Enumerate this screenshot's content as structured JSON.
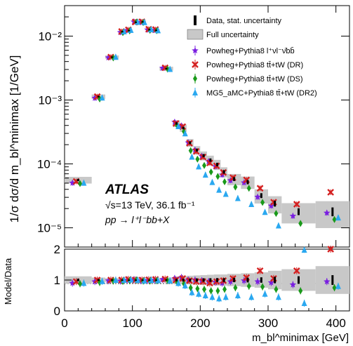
{
  "chart_data": {
    "type": "scatter",
    "experiment": "ATLAS",
    "info": {
      "energy": "√s=13 TeV, 36.1 fb⁻¹",
      "process": "pp → l⁺l⁻bb+X"
    },
    "top": {
      "ylabel": "1/σ dσ/d m_bl^minimax [1/GeV]",
      "yscale": "log",
      "ylim": [
        5e-06,
        0.03
      ],
      "yticks": [
        "10⁻⁵",
        "10⁻⁴",
        "10⁻³",
        "10⁻²"
      ],
      "ytick_values": [
        1e-05,
        0.0001,
        0.001,
        0.01
      ]
    },
    "bottom": {
      "ylabel": "Model/Data",
      "ylim": [
        0,
        2
      ],
      "yticks": [
        "0",
        "1",
        "2"
      ],
      "ytick_values": [
        0,
        1,
        2
      ]
    },
    "xlabel": "m_bl^minimax [GeV]",
    "xlim": [
      0,
      420
    ],
    "xticks": [
      "0",
      "100",
      "200",
      "300",
      "400"
    ],
    "xtick_values": [
      0,
      100,
      200,
      300,
      400
    ],
    "bins": [
      [
        0,
        40
      ],
      [
        40,
        60
      ],
      [
        60,
        80
      ],
      [
        80,
        90
      ],
      [
        90,
        100
      ],
      [
        100,
        110
      ],
      [
        110,
        120
      ],
      [
        120,
        130
      ],
      [
        130,
        140
      ],
      [
        140,
        160
      ],
      [
        160,
        170
      ],
      [
        170,
        180
      ],
      [
        180,
        190
      ],
      [
        190,
        200
      ],
      [
        200,
        210
      ],
      [
        210,
        220
      ],
      [
        220,
        230
      ],
      [
        230,
        240
      ],
      [
        240,
        260
      ],
      [
        260,
        280
      ],
      [
        280,
        300
      ],
      [
        300,
        320
      ],
      [
        320,
        370
      ],
      [
        370,
        420
      ]
    ],
    "data": [
      5.6e-05,
      0.00113,
      0.0047,
      0.0118,
      0.0123,
      0.0166,
      0.0168,
      0.0127,
      0.0124,
      0.0031,
      0.00043,
      0.000365,
      0.000215,
      0.000165,
      0.000135,
      0.000115,
      9.8e-05,
      7.5e-05,
      5.8e-05,
      5.2e-05,
      3.2e-05,
      2.4e-05,
      1.8e-05,
      1.8e-05
    ],
    "uncertainty_frac": [
      0.12,
      0.08,
      0.06,
      0.05,
      0.05,
      0.05,
      0.05,
      0.05,
      0.05,
      0.07,
      0.12,
      0.13,
      0.14,
      0.15,
      0.16,
      0.17,
      0.18,
      0.18,
      0.2,
      0.22,
      0.25,
      0.3,
      0.35,
      0.45
    ],
    "series": [
      {
        "name": "Powheg+Pythia8 l⁺νl⁻ν̄bb̄",
        "color": "#7a1fe0",
        "marker": "star",
        "ratio": [
          0.9,
          0.95,
          0.98,
          0.97,
          1.0,
          1.01,
          0.98,
          0.99,
          1.0,
          1.02,
          1.05,
          1.08,
          1.0,
          1.0,
          0.98,
          0.95,
          0.93,
          0.9,
          0.95,
          0.98,
          0.95,
          0.92,
          0.85,
          0.95
        ]
      },
      {
        "name": "Powheg+Pythia8 tt̄+tW (DR)",
        "color": "#d42020",
        "marker": "cross",
        "ratio": [
          0.95,
          1.0,
          1.0,
          1.0,
          1.02,
          1.0,
          1.0,
          1.01,
          1.02,
          1.03,
          1.0,
          1.05,
          0.98,
          0.95,
          0.95,
          0.9,
          0.95,
          0.98,
          1.05,
          1.08,
          1.3,
          1.05,
          1.3,
          2.0
        ]
      },
      {
        "name": "Powheg+Pythia8 tt̄+tW (DS)",
        "color": "#1a9a1a",
        "marker": "diamond",
        "ratio": [
          0.88,
          0.92,
          0.97,
          0.96,
          0.98,
          1.0,
          0.97,
          0.97,
          0.98,
          0.98,
          0.92,
          0.88,
          0.75,
          0.72,
          0.7,
          0.65,
          0.65,
          0.7,
          0.75,
          0.8,
          0.78,
          0.7,
          0.65,
          0.75
        ]
      },
      {
        "name": "MG5_aMC+Pythia8 tt̄+tW (DR2)",
        "color": "#2aa8f0",
        "marker": "triangle",
        "ratio": [
          0.9,
          0.96,
          1.0,
          1.0,
          1.01,
          1.0,
          0.98,
          1.0,
          0.99,
          0.98,
          0.9,
          0.82,
          0.6,
          0.55,
          0.5,
          0.45,
          0.4,
          0.45,
          0.5,
          0.45,
          0.55,
          0.45,
          0.25,
          0.8
        ]
      }
    ],
    "legend": {
      "data_label": "Data, stat. uncertainty",
      "band_label": "Full uncertainty",
      "position": "top-right"
    }
  }
}
